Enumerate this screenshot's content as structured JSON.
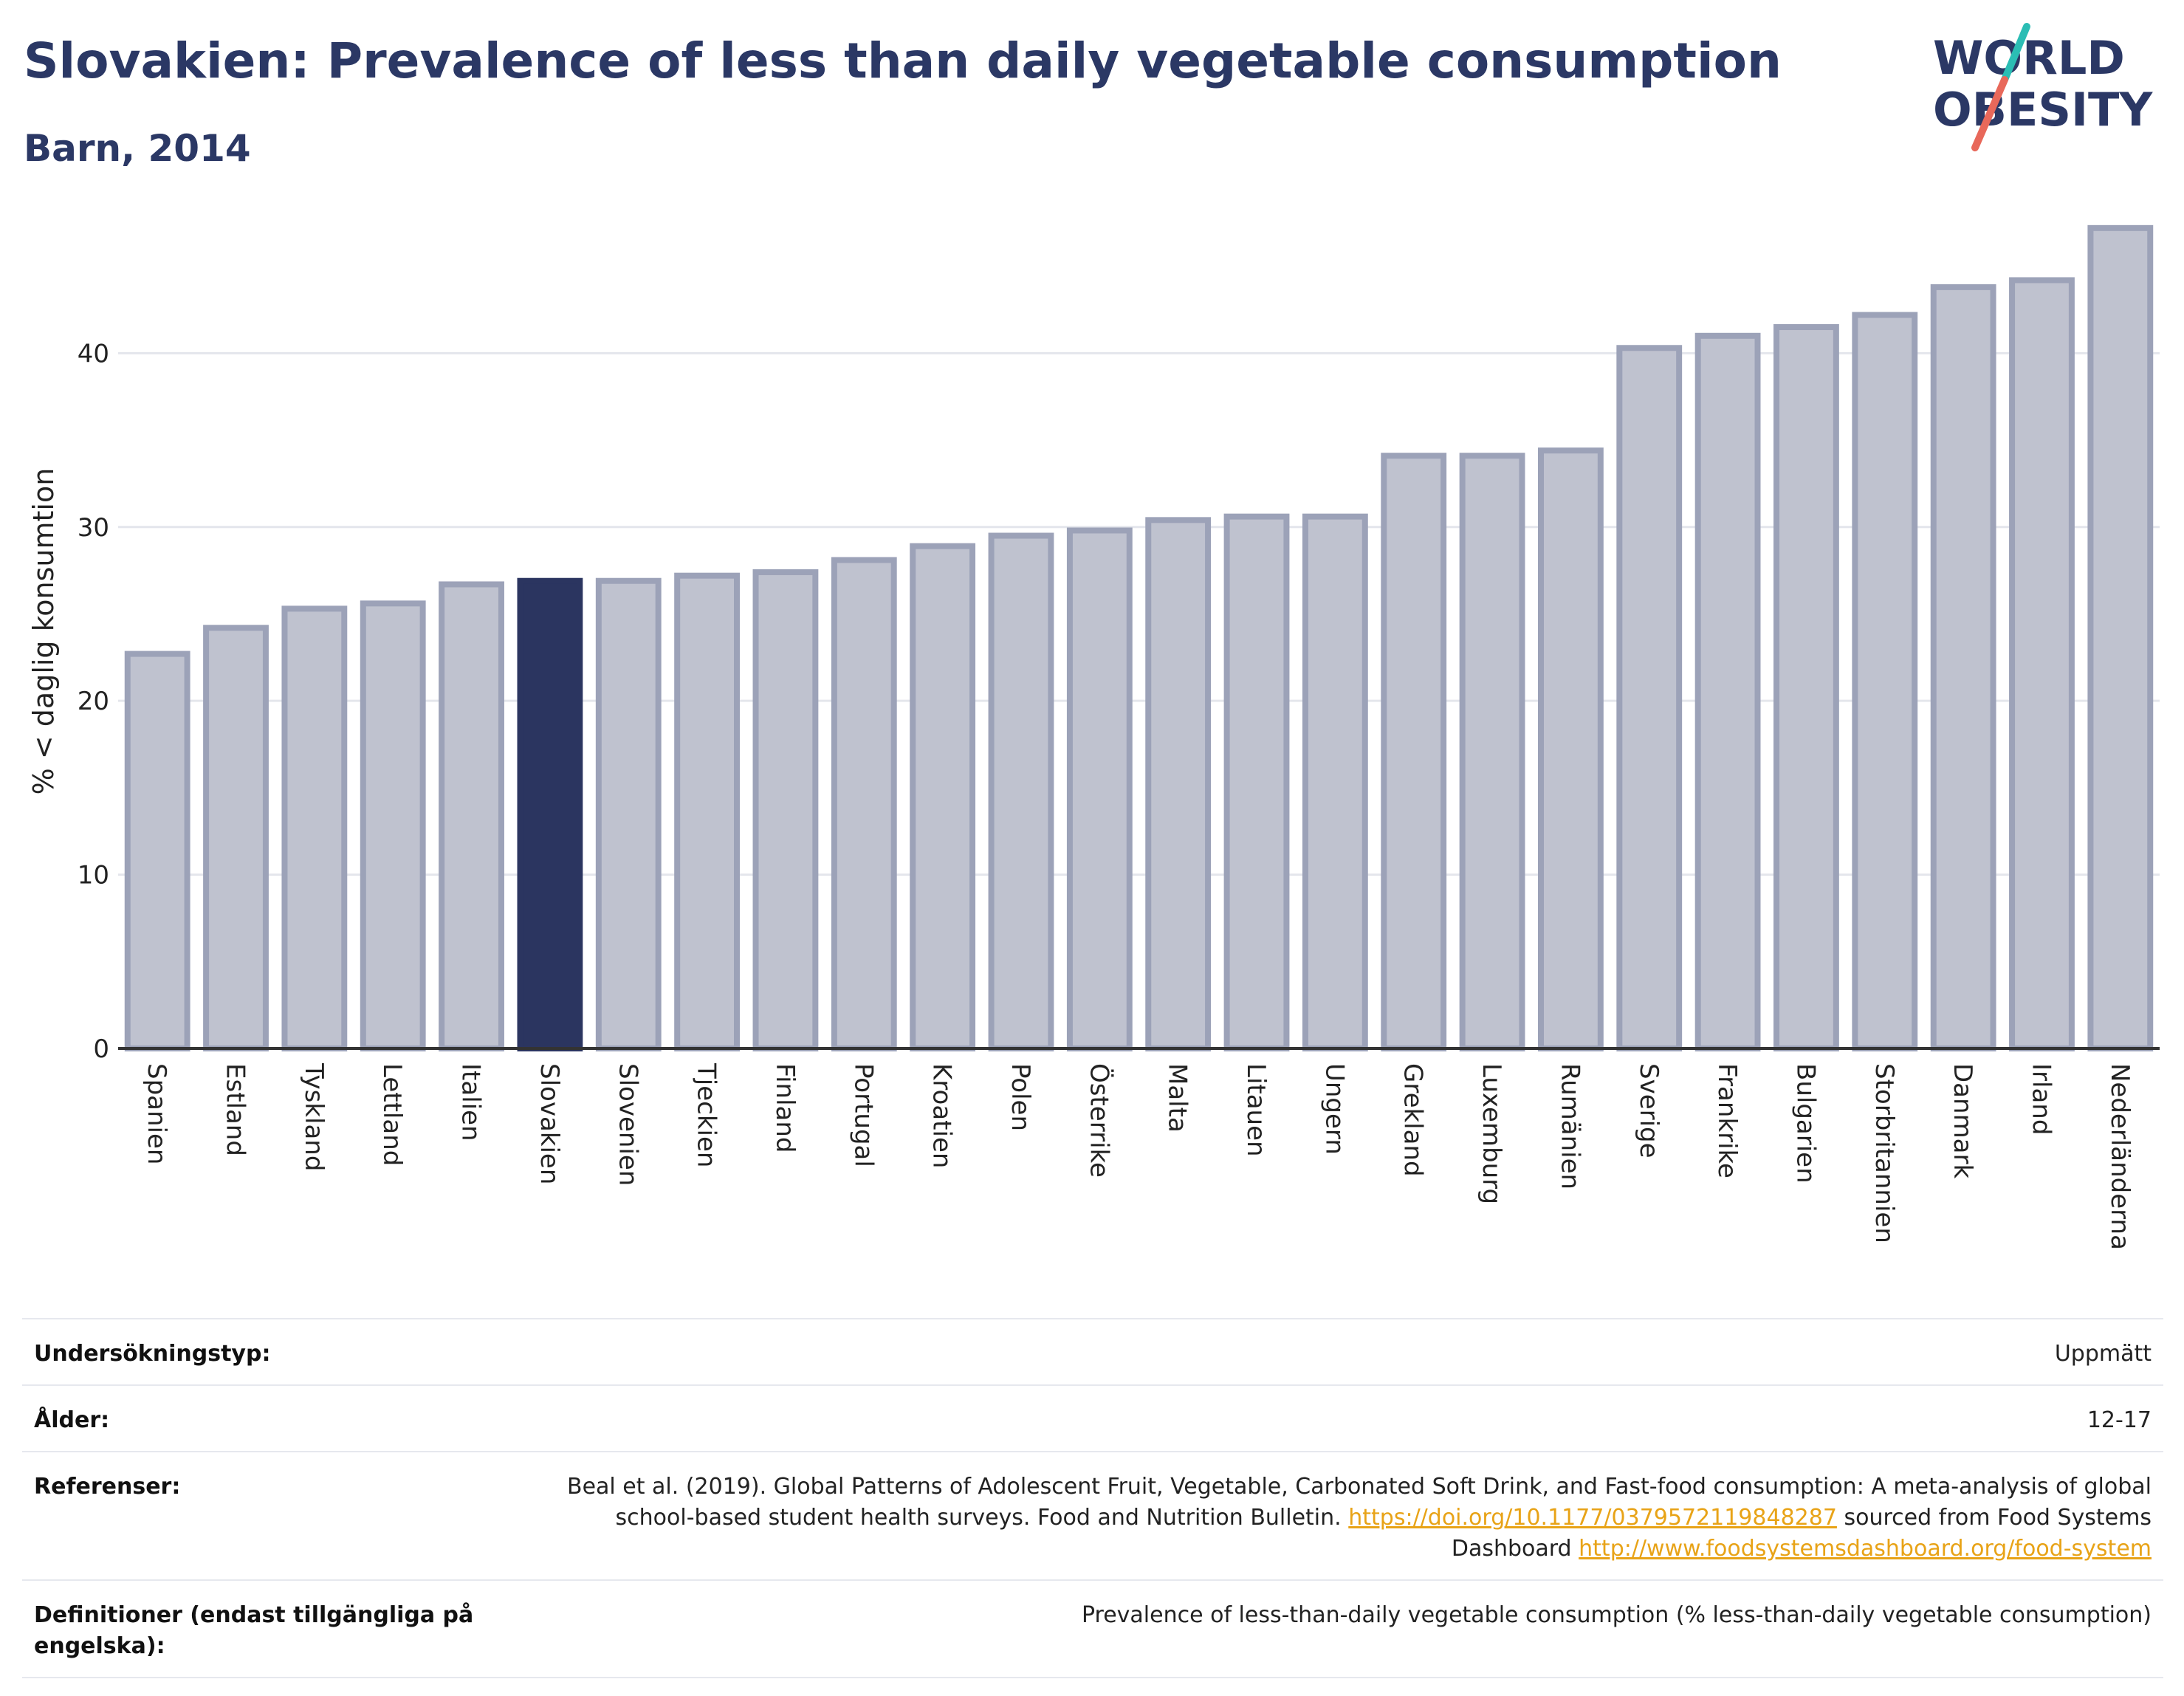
{
  "header": {
    "title": "Slovakien: Prevalence of less than daily vegetable consumption",
    "subtitle": "Barn, 2014"
  },
  "logo": {
    "line1": "WORLD",
    "line2": "OBESITY"
  },
  "colors": {
    "bar": "#bfc2cf",
    "bar_stroke": "#9ca2b8",
    "highlight": "#2b3560",
    "title": "#2b3865",
    "link": "#e8a317",
    "logo_teal": "#2bbdb4",
    "logo_red": "#e8685a"
  },
  "chart_data": {
    "type": "bar",
    "title": "Slovakien: Prevalence of less than daily vegetable consumption",
    "subtitle": "Barn, 2014",
    "ylabel": "% < daglig konsumtion",
    "xlabel": "",
    "ylim": [
      0,
      48
    ],
    "yticks": [
      0,
      10,
      20,
      30,
      40
    ],
    "grid": true,
    "highlight": "Slovakien",
    "categories": [
      "Spanien",
      "Estland",
      "Tyskland",
      "Lettland",
      "Italien",
      "Slovakien",
      "Slovenien",
      "Tjeckien",
      "Finland",
      "Portugal",
      "Kroatien",
      "Polen",
      "Österrike",
      "Malta",
      "Litauen",
      "Ungern",
      "Grekland",
      "Luxemburg",
      "Rumänien",
      "Sverige",
      "Frankrike",
      "Bulgarien",
      "Storbritannien",
      "Danmark",
      "Irland",
      "Nederländerna"
    ],
    "values": [
      22.7,
      24.2,
      25.3,
      25.6,
      26.7,
      26.9,
      26.9,
      27.2,
      27.4,
      28.1,
      28.9,
      29.5,
      29.8,
      30.4,
      30.6,
      30.6,
      34.1,
      34.1,
      34.4,
      40.3,
      41.0,
      41.5,
      42.2,
      43.8,
      44.2,
      47.2
    ]
  },
  "info": {
    "survey_label": "Undersökningstyp:",
    "survey_value": "Uppmätt",
    "age_label": "Ålder:",
    "age_value": "12-17",
    "ref_label": "Referenser:",
    "ref_text1": "Beal et al. (2019). Global Patterns of Adolescent Fruit, Vegetable, Carbonated Soft Drink, and Fast-food consumption: A meta-analysis of global school-based student health surveys. Food and Nutrition Bulletin.",
    "ref_link1": "https://doi.org/10.1177/0379572119848287",
    "ref_text2": "sourced from Food Systems Dashboard",
    "ref_link2": "http://www.foodsystemsdashboard.org/food-system",
    "def_label": "Definitioner (endast tillgängliga på engelska):",
    "def_value": "Prevalence of less-than-daily vegetable consumption (% less-than-daily vegetable consumption)"
  }
}
